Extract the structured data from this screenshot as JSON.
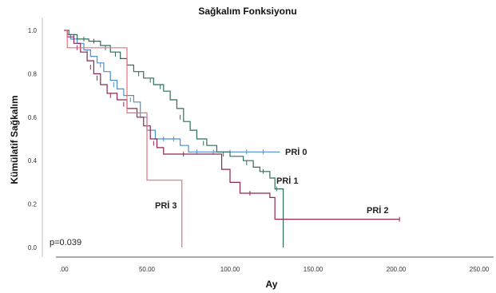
{
  "chart_data": {
    "type": "line",
    "title": "Sağkalım Fonksiyonu",
    "xlabel": "Ay",
    "ylabel": "Kümülatif Sağkalım",
    "xlim": [
      0,
      250
    ],
    "ylim": [
      0,
      1
    ],
    "x_ticks": [
      ".00",
      "50.00",
      "100.00",
      "150.00",
      "200.00",
      "250.00"
    ],
    "x_tick_values": [
      0,
      50,
      100,
      150,
      200,
      250
    ],
    "y_ticks": [
      "0.0",
      "0.2",
      "0.4",
      "0.6",
      "0.8",
      "1.0"
    ],
    "y_tick_values": [
      0,
      0.2,
      0.4,
      0.6,
      0.8,
      1.0
    ],
    "annotation": "p=0.039",
    "grid": false,
    "series": [
      {
        "name": "PRİ 0",
        "color": "#4b8fd1",
        "steps": [
          [
            0,
            1.0
          ],
          [
            2,
            0.98
          ],
          [
            4,
            0.96
          ],
          [
            8,
            0.94
          ],
          [
            12,
            0.91
          ],
          [
            16,
            0.88
          ],
          [
            20,
            0.85
          ],
          [
            24,
            0.81
          ],
          [
            28,
            0.77
          ],
          [
            32,
            0.73
          ],
          [
            36,
            0.7
          ],
          [
            42,
            0.67
          ],
          [
            46,
            0.6
          ],
          [
            50,
            0.54
          ],
          [
            55,
            0.5
          ],
          [
            70,
            0.47
          ],
          [
            75,
            0.44
          ],
          [
            130,
            0.44
          ]
        ],
        "censor": [
          [
            6,
            0.95
          ],
          [
            14,
            0.9
          ],
          [
            22,
            0.84
          ],
          [
            30,
            0.75
          ],
          [
            40,
            0.68
          ],
          [
            60,
            0.5
          ],
          [
            66,
            0.5
          ],
          [
            80,
            0.44
          ],
          [
            90,
            0.44
          ],
          [
            100,
            0.44
          ],
          [
            110,
            0.44
          ],
          [
            120,
            0.44
          ]
        ]
      },
      {
        "name": "PRİ 1",
        "color": "#2f6e5e",
        "steps": [
          [
            0,
            1.0
          ],
          [
            3,
            0.98
          ],
          [
            8,
            0.96
          ],
          [
            15,
            0.95
          ],
          [
            22,
            0.93
          ],
          [
            28,
            0.9
          ],
          [
            34,
            0.87
          ],
          [
            38,
            0.84
          ],
          [
            42,
            0.81
          ],
          [
            48,
            0.78
          ],
          [
            54,
            0.75
          ],
          [
            60,
            0.72
          ],
          [
            64,
            0.68
          ],
          [
            68,
            0.64
          ],
          [
            72,
            0.58
          ],
          [
            76,
            0.54
          ],
          [
            80,
            0.5
          ],
          [
            86,
            0.47
          ],
          [
            92,
            0.44
          ],
          [
            100,
            0.42
          ],
          [
            108,
            0.4
          ],
          [
            114,
            0.37
          ],
          [
            118,
            0.35
          ],
          [
            124,
            0.32
          ],
          [
            127,
            0.27
          ],
          [
            132,
            0.0
          ]
        ],
        "censor": [
          [
            6,
            0.97
          ],
          [
            12,
            0.96
          ],
          [
            18,
            0.95
          ],
          [
            25,
            0.92
          ],
          [
            31,
            0.89
          ],
          [
            45,
            0.8
          ],
          [
            52,
            0.77
          ],
          [
            58,
            0.74
          ],
          [
            70,
            0.6
          ],
          [
            84,
            0.48
          ],
          [
            96,
            0.43
          ],
          [
            110,
            0.39
          ],
          [
            120,
            0.35
          ],
          [
            128,
            0.27
          ]
        ]
      },
      {
        "name": "PRİ 2",
        "color": "#8e2650",
        "steps": [
          [
            0,
            1.0
          ],
          [
            2,
            0.97
          ],
          [
            6,
            0.94
          ],
          [
            10,
            0.9
          ],
          [
            14,
            0.86
          ],
          [
            18,
            0.8
          ],
          [
            22,
            0.75
          ],
          [
            26,
            0.71
          ],
          [
            32,
            0.68
          ],
          [
            38,
            0.64
          ],
          [
            44,
            0.6
          ],
          [
            48,
            0.56
          ],
          [
            52,
            0.5
          ],
          [
            56,
            0.46
          ],
          [
            60,
            0.43
          ],
          [
            95,
            0.36
          ],
          [
            100,
            0.3
          ],
          [
            106,
            0.25
          ],
          [
            124,
            0.23
          ],
          [
            127,
            0.13
          ],
          [
            202,
            0.13
          ]
        ],
        "censor": [
          [
            8,
            0.92
          ],
          [
            16,
            0.83
          ],
          [
            20,
            0.78
          ],
          [
            28,
            0.7
          ],
          [
            36,
            0.66
          ],
          [
            54,
            0.48
          ],
          [
            72,
            0.43
          ],
          [
            112,
            0.25
          ],
          [
            202,
            0.13
          ]
        ]
      },
      {
        "name": "PRİ 3",
        "color": "#e8707c",
        "steps": [
          [
            0,
            1.0
          ],
          [
            2,
            0.92
          ],
          [
            12,
            0.92
          ],
          [
            16,
            0.92
          ],
          [
            36,
            0.92
          ],
          [
            38,
            0.62
          ],
          [
            48,
            0.62
          ],
          [
            50,
            0.31
          ],
          [
            71,
            0.31
          ],
          [
            71,
            0.0
          ]
        ],
        "censor": []
      }
    ]
  }
}
